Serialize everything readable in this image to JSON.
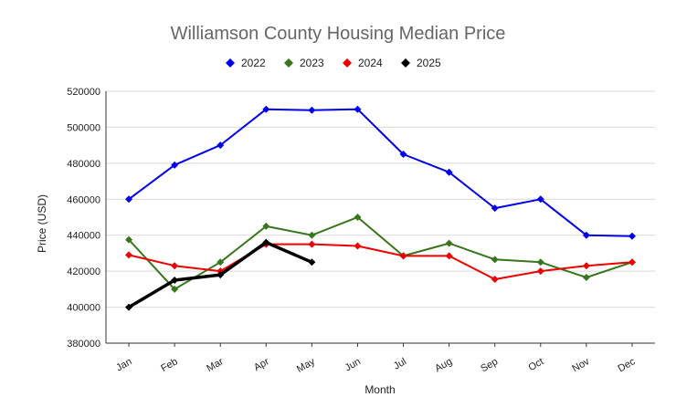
{
  "chart_data": {
    "type": "line",
    "title": "Williamson County Housing Median Price",
    "xlabel": "Month",
    "ylabel": "Price (USD)",
    "categories": [
      "Jan",
      "Feb",
      "Mar",
      "Apr",
      "May",
      "Jun",
      "Jul",
      "Aug",
      "Sep",
      "Oct",
      "Nov",
      "Dec"
    ],
    "ylim": [
      380000,
      520000
    ],
    "yticks": [
      380000,
      400000,
      420000,
      440000,
      460000,
      480000,
      500000,
      520000
    ],
    "grid": true,
    "legend_position": "top-center",
    "series": [
      {
        "name": "2022",
        "color": "#0000ee",
        "line_width": 2,
        "values": [
          460000,
          479000,
          490000,
          510000,
          509500,
          510000,
          485000,
          475000,
          455000,
          460000,
          440000,
          439500
        ]
      },
      {
        "name": "2023",
        "color": "#38761d",
        "line_width": 2,
        "values": [
          437500,
          410000,
          425000,
          445000,
          440000,
          450000,
          428500,
          435500,
          426500,
          425000,
          416500,
          425000
        ]
      },
      {
        "name": "2024",
        "color": "#ee0000",
        "line_width": 2,
        "values": [
          429000,
          423000,
          420000,
          435000,
          435000,
          434000,
          428500,
          428500,
          415500,
          420000,
          423000,
          425000
        ]
      },
      {
        "name": "2025",
        "color": "#000000",
        "line_width": 3.5,
        "values": [
          400000,
          415000,
          418000,
          436000,
          425000,
          null,
          null,
          null,
          null,
          null,
          null,
          null
        ]
      }
    ]
  }
}
